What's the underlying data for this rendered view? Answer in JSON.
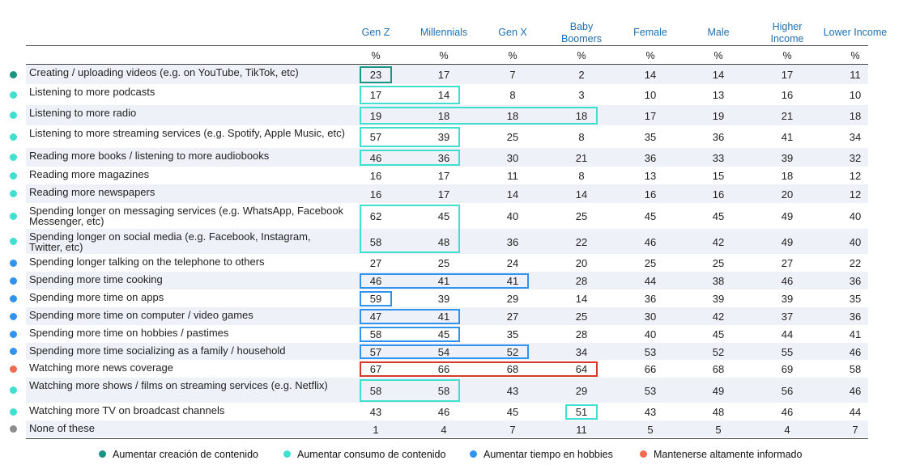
{
  "chart_data": {
    "type": "table",
    "columns": [
      "Gen Z",
      "Millennials",
      "Gen X",
      "Baby\nBoomers",
      "Female",
      "Male",
      "Higher\nIncome",
      "Lower Income"
    ],
    "units": [
      "%",
      "%",
      "%",
      "%",
      "%",
      "%",
      "%",
      "%"
    ],
    "rows": [
      {
        "label": "Creating / uploading videos (e.g. on YouTube, TikTok, etc)",
        "category": 0,
        "values": [
          23,
          17,
          7,
          2,
          14,
          14,
          17,
          11
        ]
      },
      {
        "label": "Listening to more podcasts",
        "category": 1,
        "values": [
          17,
          14,
          8,
          3,
          10,
          13,
          16,
          10
        ]
      },
      {
        "label": "Listening to more radio",
        "category": 1,
        "values": [
          19,
          18,
          18,
          18,
          17,
          19,
          21,
          18
        ]
      },
      {
        "label": "Listening to more streaming services (e.g. Spotify, Apple Music, etc)",
        "category": 1,
        "values": [
          57,
          39,
          25,
          8,
          35,
          36,
          41,
          34
        ]
      },
      {
        "label": "Reading more books / listening to more audiobooks",
        "category": 1,
        "values": [
          46,
          36,
          30,
          21,
          36,
          33,
          39,
          32
        ]
      },
      {
        "label": "Reading more magazines",
        "category": 1,
        "values": [
          16,
          17,
          11,
          8,
          13,
          15,
          18,
          12
        ]
      },
      {
        "label": "Reading more newspapers",
        "category": 1,
        "values": [
          16,
          17,
          14,
          14,
          16,
          16,
          20,
          12
        ]
      },
      {
        "label": "Spending longer on messaging services (e.g. WhatsApp, Facebook Messenger, etc)",
        "category": 1,
        "values": [
          62,
          45,
          40,
          25,
          45,
          45,
          49,
          40
        ]
      },
      {
        "label": "Spending longer on social media (e.g. Facebook, Instagram, Twitter, etc)",
        "category": 1,
        "values": [
          58,
          48,
          36,
          22,
          46,
          42,
          49,
          40
        ]
      },
      {
        "label": "Spending longer talking on the telephone to others",
        "category": 2,
        "values": [
          27,
          25,
          24,
          20,
          25,
          25,
          27,
          22
        ]
      },
      {
        "label": "Spending more time cooking",
        "category": 2,
        "values": [
          46,
          41,
          41,
          28,
          44,
          38,
          46,
          36
        ]
      },
      {
        "label": "Spending more time on apps",
        "category": 2,
        "values": [
          59,
          39,
          29,
          14,
          36,
          39,
          39,
          35
        ]
      },
      {
        "label": "Spending more time on computer / video games",
        "category": 2,
        "values": [
          47,
          41,
          27,
          25,
          30,
          42,
          37,
          36
        ]
      },
      {
        "label": "Spending more time on hobbies / pastimes",
        "category": 2,
        "values": [
          58,
          45,
          35,
          28,
          40,
          45,
          44,
          41
        ]
      },
      {
        "label": "Spending more time socializing as a family / household",
        "category": 2,
        "values": [
          57,
          54,
          52,
          34,
          53,
          52,
          55,
          46
        ]
      },
      {
        "label": "Watching more news coverage",
        "category": 3,
        "values": [
          67,
          66,
          68,
          64,
          66,
          68,
          69,
          58
        ]
      },
      {
        "label": "Watching more shows / films on streaming services (e.g. Netflix)",
        "category": 1,
        "values": [
          58,
          58,
          43,
          29,
          53,
          49,
          56,
          46
        ]
      },
      {
        "label": "Watching more TV on broadcast channels",
        "category": 1,
        "values": [
          43,
          46,
          45,
          51,
          43,
          48,
          46,
          44
        ]
      },
      {
        "label": "None of these",
        "category": 4,
        "values": [
          1,
          4,
          7,
          11,
          5,
          5,
          4,
          7
        ]
      }
    ],
    "highlights": [
      {
        "row": 0,
        "from": 0,
        "to": 0,
        "category": 0
      },
      {
        "row": 1,
        "from": 0,
        "to": 1,
        "category": 1
      },
      {
        "row": 2,
        "from": 0,
        "to": 3,
        "category": 1
      },
      {
        "row": 3,
        "from": 0,
        "to": 1,
        "category": 1
      },
      {
        "row": 4,
        "from": 0,
        "to": 1,
        "category": 1
      },
      {
        "row": 7,
        "to_row": 8,
        "from": 0,
        "to": 1,
        "category": 1
      },
      {
        "row": 10,
        "from": 0,
        "to": 2,
        "category": 2
      },
      {
        "row": 11,
        "from": 0,
        "to": 0,
        "category": 2
      },
      {
        "row": 12,
        "from": 0,
        "to": 1,
        "category": 2
      },
      {
        "row": 13,
        "from": 0,
        "to": 1,
        "category": 2
      },
      {
        "row": 14,
        "from": 0,
        "to": 2,
        "category": 2
      },
      {
        "row": 15,
        "from": 0,
        "to": 3,
        "category": 3
      },
      {
        "row": 16,
        "from": 0,
        "to": 1,
        "category": 1
      },
      {
        "row": 17,
        "from": 3,
        "to": 3,
        "category": 1
      }
    ],
    "categories": [
      {
        "name": "Aumentar creación de contenido",
        "color": "#1a9583"
      },
      {
        "name": "Aumentar consumo de contenido",
        "color": "#3fe0cf"
      },
      {
        "name": "Aumentar tiempo en hobbies",
        "color": "#2f93ef"
      },
      {
        "name": "Mantenerse altamente informado",
        "color": "#f26b4f"
      },
      {
        "name": "",
        "color": "#8c8c8c"
      }
    ],
    "box_colors": [
      "#1a9583",
      "#3fe0cf",
      "#2f93ef",
      "#d43a2a"
    ],
    "legend_position": "bottom"
  }
}
